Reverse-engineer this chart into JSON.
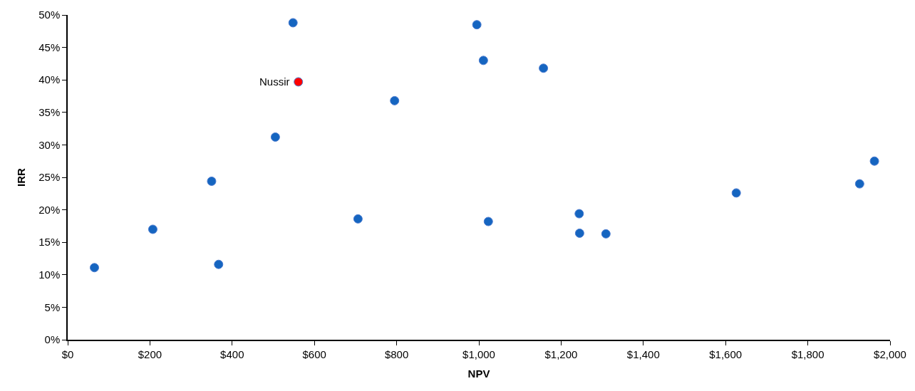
{
  "chart_data": {
    "type": "scatter",
    "xlabel": "NPV",
    "ylabel": "IRR",
    "marker": "circle",
    "series": [
      {
        "color": "#1565c0",
        "x": [
          65,
          207,
          350,
          367,
          505,
          548,
          706,
          795,
          995,
          1011,
          1023,
          1157,
          1244,
          1245,
          1309,
          1626,
          1926,
          1962
        ],
        "values": [
          11.1,
          17.0,
          24.4,
          11.6,
          31.2,
          48.8,
          18.6,
          36.8,
          48.5,
          43.0,
          18.2,
          41.8,
          19.4,
          16.4,
          16.3,
          22.6,
          24.0,
          27.5
        ]
      },
      {
        "color": "#ff0000",
        "x": [
          561
        ],
        "values": [
          39.7
        ]
      }
    ],
    "annotations": [
      {
        "text": "Nussir",
        "x": 561,
        "y": 39.7
      }
    ],
    "xlim": [
      0,
      2000
    ],
    "ylim": [
      0,
      50
    ],
    "xticks": [
      {
        "value": 0,
        "label": "$0"
      },
      {
        "value": 200,
        "label": "$200"
      },
      {
        "value": 400,
        "label": "$400"
      },
      {
        "value": 600,
        "label": "$600"
      },
      {
        "value": 800,
        "label": "$800"
      },
      {
        "value": 1000,
        "label": "$1,000"
      },
      {
        "value": 1200,
        "label": "$1,200"
      },
      {
        "value": 1400,
        "label": "$1,400"
      },
      {
        "value": 1600,
        "label": "$1,600"
      },
      {
        "value": 1800,
        "label": "$1,800"
      },
      {
        "value": 2000,
        "label": "$2,000"
      }
    ],
    "yticks": [
      {
        "value": 0,
        "label": "0%"
      },
      {
        "value": 5,
        "label": "5%"
      },
      {
        "value": 10,
        "label": "10%"
      },
      {
        "value": 15,
        "label": "15%"
      },
      {
        "value": 20,
        "label": "20%"
      },
      {
        "value": 25,
        "label": "25%"
      },
      {
        "value": 30,
        "label": "30%"
      },
      {
        "value": 35,
        "label": "35%"
      },
      {
        "value": 40,
        "label": "40%"
      },
      {
        "value": 45,
        "label": "45%"
      },
      {
        "value": 50,
        "label": "50%"
      }
    ]
  }
}
